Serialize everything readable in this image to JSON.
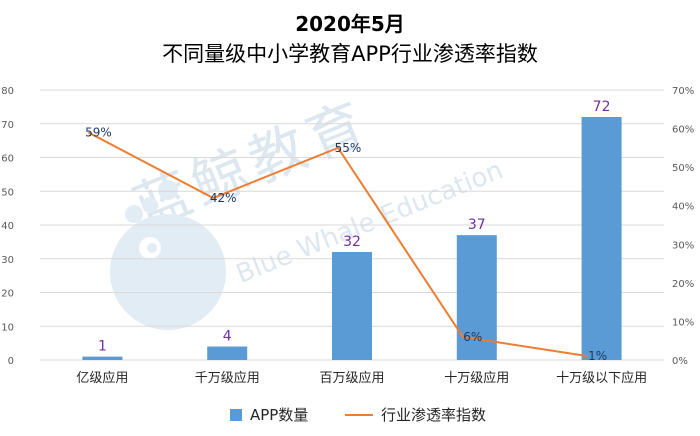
{
  "title_line1": "2020年5月",
  "title_line2": "不同量级中小学教育APP行业渗透率指数",
  "watermark": {
    "cn": "蓝鲸教育",
    "en": "Blue Whale Education"
  },
  "legend": {
    "bar": "APP数量",
    "line": "行业渗透率指数"
  },
  "colors": {
    "bar": "#5b9bd5",
    "line": "#ed7d31",
    "bar_label": "#7030a0",
    "line_label": "#1f3864",
    "grid": "#d9d9d9"
  },
  "chart_data": {
    "type": "bar",
    "categories": [
      "亿级应用",
      "千万级应用",
      "百万级应用",
      "十万级应用",
      "十万级以下应用"
    ],
    "series": [
      {
        "name": "APP数量",
        "type": "bar",
        "axis": "left",
        "values": [
          1,
          4,
          32,
          37,
          72
        ],
        "labels": [
          "1",
          "4",
          "32",
          "37",
          "72"
        ]
      },
      {
        "name": "行业渗透率指数",
        "type": "line",
        "axis": "right",
        "values": [
          59,
          42,
          55,
          6,
          1
        ],
        "labels": [
          "59%",
          "42%",
          "55%",
          "6%",
          "1%"
        ]
      }
    ],
    "y_left": {
      "min": 0,
      "max": 80,
      "step": 10,
      "ticks": [
        "0",
        "10",
        "20",
        "30",
        "40",
        "50",
        "60",
        "70",
        "80"
      ]
    },
    "y_right": {
      "min": 0,
      "max": 70,
      "step": 10,
      "ticks": [
        "0%",
        "10%",
        "20%",
        "30%",
        "40%",
        "50%",
        "60%",
        "70%"
      ]
    },
    "grid": true,
    "legend_position": "bottom"
  }
}
